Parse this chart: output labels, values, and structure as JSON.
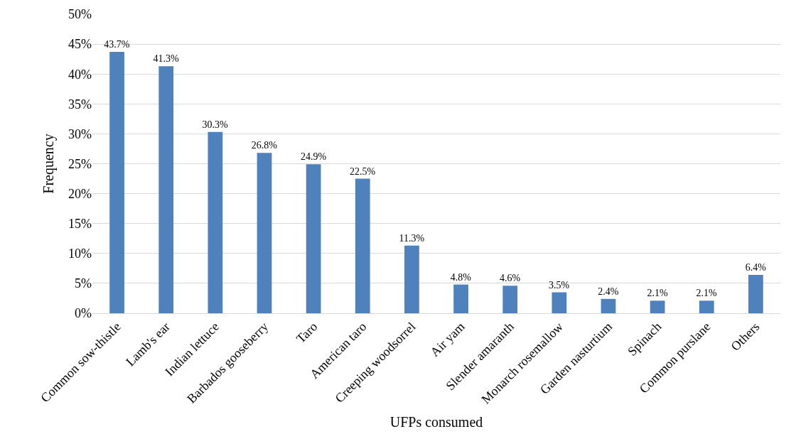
{
  "chart_data": {
    "type": "bar",
    "xlabel": "UFPs consumed",
    "ylabel": "Frequency",
    "categories": [
      "Common sow-thistle",
      "Lamb's ear",
      "Indian lettuce",
      "Barbados gooseberry",
      "Taro",
      "American taro",
      "Creeping woodsorrel",
      "Air yam",
      "Slender amaranth",
      "Monarch rosemallow",
      "Garden nasturtium",
      "Spinach",
      "Common purslane",
      "Others"
    ],
    "values": [
      43.7,
      41.3,
      30.3,
      26.8,
      24.9,
      22.5,
      11.3,
      4.8,
      4.6,
      3.5,
      2.4,
      2.1,
      2.1,
      6.4
    ],
    "value_labels": [
      "43.7%",
      "41.3%",
      "30.3%",
      "26.8%",
      "24.9%",
      "22.5%",
      "11.3%",
      "4.8%",
      "4.6%",
      "3.5%",
      "2.4%",
      "2.1%",
      "2.1%",
      "6.4%"
    ],
    "color": "#4f81bd",
    "ylim": [
      0,
      50
    ],
    "yticks": [
      {
        "value": 0,
        "label": "0%"
      },
      {
        "value": 5,
        "label": "5%"
      },
      {
        "value": 10,
        "label": "10%"
      },
      {
        "value": 15,
        "label": "15%"
      },
      {
        "value": 20,
        "label": "20%"
      },
      {
        "value": 25,
        "label": "25%"
      },
      {
        "value": 30,
        "label": "30%"
      },
      {
        "value": 35,
        "label": "35%"
      },
      {
        "value": 40,
        "label": "40%"
      },
      {
        "value": 45,
        "label": "45%"
      },
      {
        "value": 50,
        "label": "50%"
      }
    ],
    "grid": "y"
  }
}
